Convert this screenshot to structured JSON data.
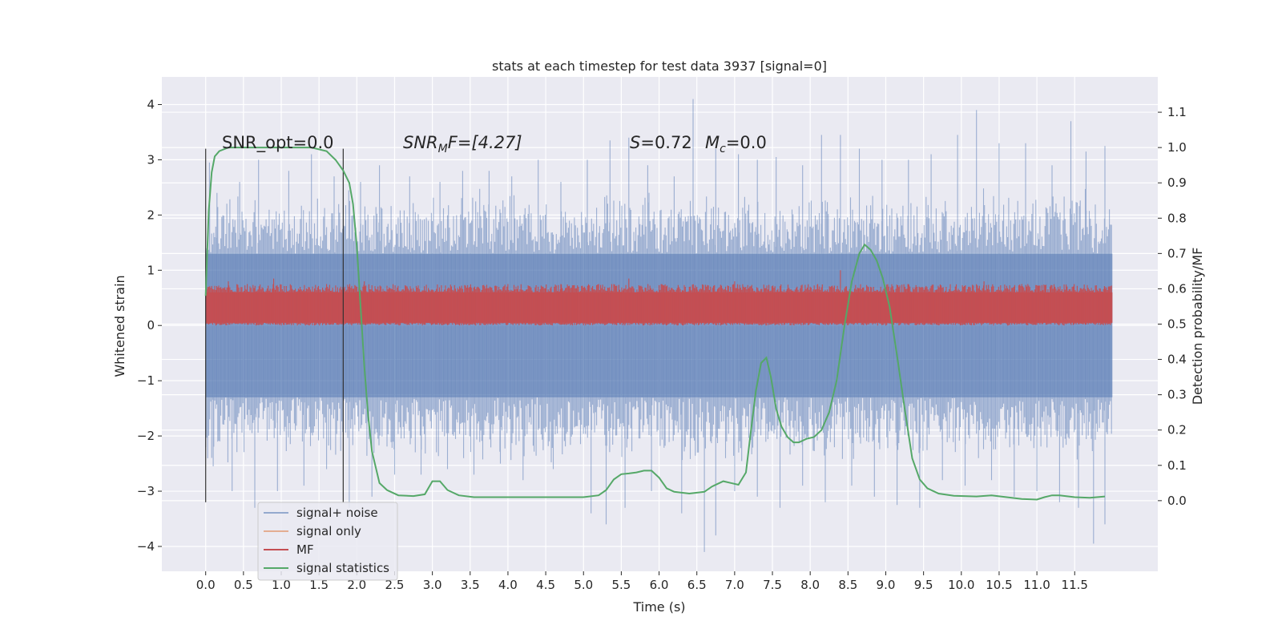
{
  "chart_data": {
    "type": "line",
    "title": "stats at each timestep for test data 3937 [signal=0]",
    "xlabel": "Time (s)",
    "ylabel": "Whitened strain",
    "ylabel_right": "Detection probability/MF",
    "xlim": [
      -0.58,
      12.6
    ],
    "ylim": [
      -4.45,
      4.5
    ],
    "ylim_right": [
      -0.2,
      1.2
    ],
    "x_ticks": [
      0.0,
      0.5,
      1.0,
      1.5,
      2.0,
      2.5,
      3.0,
      3.5,
      4.0,
      4.5,
      5.0,
      5.5,
      6.0,
      6.5,
      7.0,
      7.5,
      8.0,
      8.5,
      9.0,
      9.5,
      10.0,
      10.5,
      11.0,
      11.5
    ],
    "x_tick_labels": [
      "0.0",
      "0.5",
      "1.0",
      "1.5",
      "2.0",
      "2.5",
      "3.0",
      "3.5",
      "4.0",
      "4.5",
      "5.0",
      "5.5",
      "6.0",
      "6.5",
      "7.0",
      "7.5",
      "8.0",
      "8.5",
      "9.0",
      "9.5",
      "10.0",
      "10.5",
      "11.0",
      "11.5"
    ],
    "y_ticks": [
      -4,
      -3,
      -2,
      -1,
      0,
      1,
      2,
      3,
      4
    ],
    "y_tick_labels": [
      "−4",
      "−3",
      "−2",
      "−1",
      "0",
      "1",
      "2",
      "3",
      "4"
    ],
    "y_right_ticks": [
      0.0,
      0.1,
      0.2,
      0.3,
      0.4,
      0.5,
      0.6,
      0.7,
      0.8,
      0.9,
      1.0,
      1.1
    ],
    "y_right_tick_labels": [
      "0.0",
      "0.1",
      "0.2",
      "0.3",
      "0.4",
      "0.5",
      "0.6",
      "0.7",
      "0.8",
      "0.9",
      "1.0",
      "1.1"
    ],
    "grid": true,
    "legend_position": "lower-left",
    "legend": [
      {
        "name": "signal+ noise",
        "color": "#4c72b0"
      },
      {
        "name": "signal only",
        "color": "#dd8452"
      },
      {
        "name": "MF",
        "color": "#c44e52"
      },
      {
        "name": "signal statistics",
        "color": "#55a868"
      }
    ],
    "annotations": {
      "snr_opt": "SNR_opt=0.0",
      "snr_mf_main": "SNR",
      "snr_mf_sub": "M",
      "snr_mf_rest": "F=[4.27]",
      "s_label": "S",
      "s_value": "=0.72",
      "mc_label": "M",
      "mc_sub": "c",
      "mc_value": "=0.0"
    },
    "vlines": [
      0.0,
      1.82
    ],
    "vline_range": [
      -3.2,
      3.2
    ],
    "noise": {
      "t_start": 0.0,
      "t_end": 12.0,
      "core_upper": 1.3,
      "core_lower": -1.3,
      "outer_upper": 1.9,
      "outer_lower": -1.95,
      "positive_spikes": [
        [
          0.05,
          2.95
        ],
        [
          0.15,
          2.4
        ],
        [
          0.45,
          2.6
        ],
        [
          0.7,
          3.0
        ],
        [
          1.1,
          2.8
        ],
        [
          1.4,
          3.1
        ],
        [
          1.7,
          2.7
        ],
        [
          2.05,
          2.6
        ],
        [
          2.3,
          2.9
        ],
        [
          2.7,
          2.7
        ],
        [
          3.1,
          2.6
        ],
        [
          3.4,
          2.8
        ],
        [
          3.75,
          2.8
        ],
        [
          4.05,
          2.7
        ],
        [
          4.4,
          3.0
        ],
        [
          4.7,
          2.6
        ],
        [
          5.05,
          3.0
        ],
        [
          5.35,
          3.35
        ],
        [
          5.6,
          3.4
        ],
        [
          5.85,
          2.9
        ],
        [
          6.2,
          2.7
        ],
        [
          6.45,
          4.1
        ],
        [
          6.75,
          3.2
        ],
        [
          7.05,
          3.1
        ],
        [
          7.3,
          3.0
        ],
        [
          7.55,
          3.05
        ],
        [
          7.9,
          2.9
        ],
        [
          8.15,
          3.45
        ],
        [
          8.4,
          3.45
        ],
        [
          8.65,
          3.2
        ],
        [
          8.95,
          3.0
        ],
        [
          9.3,
          3.0
        ],
        [
          9.6,
          3.1
        ],
        [
          9.95,
          3.45
        ],
        [
          10.2,
          3.9
        ],
        [
          10.5,
          3.3
        ],
        [
          10.85,
          3.3
        ],
        [
          11.2,
          2.9
        ],
        [
          11.45,
          3.7
        ],
        [
          11.65,
          3.15
        ],
        [
          11.9,
          3.25
        ]
      ],
      "negative_spikes": [
        [
          0.1,
          -2.55
        ],
        [
          0.35,
          -3.0
        ],
        [
          0.65,
          -3.3
        ],
        [
          0.95,
          -3.0
        ],
        [
          1.3,
          -2.9
        ],
        [
          1.6,
          -2.6
        ],
        [
          1.9,
          -3.3
        ],
        [
          2.2,
          -3.1
        ],
        [
          2.5,
          -2.7
        ],
        [
          2.85,
          -2.7
        ],
        [
          3.2,
          -2.6
        ],
        [
          3.55,
          -2.7
        ],
        [
          3.9,
          -2.5
        ],
        [
          4.2,
          -2.8
        ],
        [
          4.6,
          -2.6
        ],
        [
          5.1,
          -3.4
        ],
        [
          5.3,
          -3.6
        ],
        [
          5.55,
          -3.3
        ],
        [
          5.9,
          -3.0
        ],
        [
          6.3,
          -3.4
        ],
        [
          6.6,
          -4.1
        ],
        [
          6.75,
          -3.8
        ],
        [
          7.0,
          -3.0
        ],
        [
          7.3,
          -3.1
        ],
        [
          7.6,
          -3.3
        ],
        [
          7.9,
          -2.9
        ],
        [
          8.2,
          -3.2
        ],
        [
          8.55,
          -2.9
        ],
        [
          8.85,
          -3.1
        ],
        [
          9.15,
          -3.25
        ],
        [
          9.45,
          -3.3
        ],
        [
          9.75,
          -2.8
        ],
        [
          10.05,
          -2.9
        ],
        [
          10.4,
          -2.8
        ],
        [
          10.7,
          -3.1
        ],
        [
          11.0,
          -3.0
        ],
        [
          11.3,
          -3.2
        ],
        [
          11.55,
          -3.3
        ],
        [
          11.75,
          -3.95
        ],
        [
          11.9,
          -3.6
        ]
      ]
    },
    "mf": {
      "core_upper": 0.6,
      "core_lower": 0.05,
      "spikes": [
        [
          0.3,
          0.8
        ],
        [
          0.55,
          0.75
        ],
        [
          0.9,
          0.85
        ],
        [
          1.25,
          0.7
        ],
        [
          1.6,
          0.75
        ],
        [
          2.1,
          0.8
        ],
        [
          2.65,
          0.7
        ],
        [
          3.0,
          0.65
        ],
        [
          3.5,
          0.7
        ],
        [
          4.0,
          0.75
        ],
        [
          4.7,
          0.75
        ],
        [
          5.2,
          0.75
        ],
        [
          5.6,
          0.85
        ],
        [
          6.0,
          0.7
        ],
        [
          6.5,
          0.7
        ],
        [
          7.0,
          0.8
        ],
        [
          7.6,
          0.65
        ],
        [
          8.1,
          0.75
        ],
        [
          8.4,
          1.0
        ],
        [
          8.8,
          0.7
        ],
        [
          9.3,
          0.75
        ],
        [
          9.8,
          0.7
        ],
        [
          10.3,
          0.8
        ],
        [
          10.8,
          0.75
        ],
        [
          11.4,
          0.7
        ],
        [
          11.9,
          0.7
        ]
      ]
    },
    "series": [
      {
        "name": "signal statistics",
        "axis": "right",
        "x": [
          0.0,
          0.04,
          0.08,
          0.12,
          0.18,
          0.3,
          0.5,
          1.0,
          1.4,
          1.6,
          1.72,
          1.82,
          1.9,
          1.95,
          2.0,
          2.05,
          2.1,
          2.15,
          2.2,
          2.3,
          2.4,
          2.55,
          2.75,
          2.9,
          3.0,
          3.1,
          3.2,
          3.35,
          3.55,
          4.0,
          4.5,
          5.0,
          5.2,
          5.3,
          5.4,
          5.5,
          5.6,
          5.7,
          5.8,
          5.9,
          6.0,
          6.1,
          6.2,
          6.4,
          6.6,
          6.7,
          6.85,
          6.95,
          7.05,
          7.15,
          7.2,
          7.28,
          7.35,
          7.42,
          7.48,
          7.55,
          7.62,
          7.7,
          7.78,
          7.85,
          7.95,
          8.05,
          8.15,
          8.25,
          8.35,
          8.45,
          8.55,
          8.65,
          8.72,
          8.8,
          8.88,
          8.96,
          9.05,
          9.15,
          9.25,
          9.35,
          9.45,
          9.55,
          9.7,
          9.9,
          10.2,
          10.4,
          10.6,
          10.8,
          11.0,
          11.1,
          11.2,
          11.3,
          11.5,
          11.7,
          11.9
        ],
        "values": [
          0.58,
          0.82,
          0.93,
          0.975,
          0.99,
          1.0,
          1.0,
          1.0,
          1.0,
          0.99,
          0.965,
          0.935,
          0.9,
          0.84,
          0.72,
          0.55,
          0.38,
          0.24,
          0.14,
          0.05,
          0.03,
          0.015,
          0.013,
          0.018,
          0.055,
          0.055,
          0.03,
          0.015,
          0.01,
          0.01,
          0.01,
          0.01,
          0.015,
          0.03,
          0.06,
          0.075,
          0.077,
          0.08,
          0.085,
          0.085,
          0.065,
          0.035,
          0.025,
          0.02,
          0.025,
          0.04,
          0.055,
          0.05,
          0.045,
          0.08,
          0.17,
          0.31,
          0.39,
          0.405,
          0.35,
          0.26,
          0.21,
          0.18,
          0.165,
          0.165,
          0.175,
          0.18,
          0.2,
          0.25,
          0.34,
          0.49,
          0.62,
          0.7,
          0.725,
          0.71,
          0.68,
          0.63,
          0.55,
          0.41,
          0.26,
          0.12,
          0.06,
          0.035,
          0.02,
          0.014,
          0.012,
          0.015,
          0.01,
          0.005,
          0.003,
          0.01,
          0.015,
          0.015,
          0.01,
          0.008,
          0.012
        ]
      }
    ]
  }
}
